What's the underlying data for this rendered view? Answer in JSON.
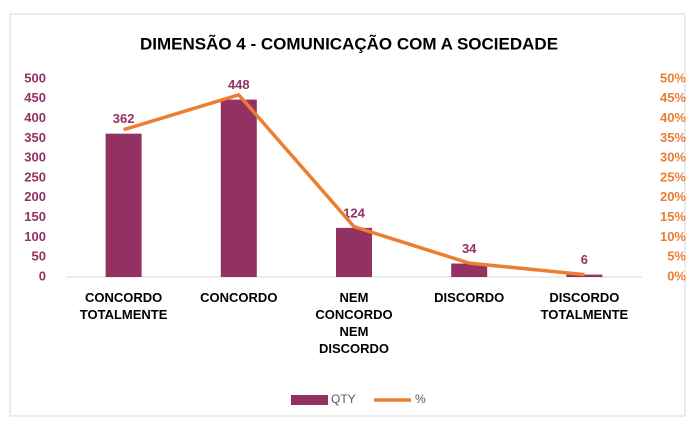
{
  "chart_data": {
    "type": "bar_line",
    "title": "DIMENSÃO 4 - COMUNICAÇÃO COM A SOCIEDADE",
    "categories": [
      "CONCORDO TOTALMENTE",
      "CONCORDO",
      "NEM CONCORDO NEM DISCORDO",
      "DISCORDO",
      "DISCORDO TOTALMENTE"
    ],
    "series": [
      {
        "name": "QTY",
        "color": "#943163",
        "type": "bar",
        "values": [
          362,
          448,
          124,
          34,
          6
        ],
        "data_labels": true
      },
      {
        "name": "%",
        "color": "#ED7D31",
        "type": "line",
        "axis": "y2",
        "values": [
          37.2,
          46.0,
          12.7,
          3.5,
          0.6
        ]
      }
    ],
    "ylim": [
      0,
      500
    ],
    "yticks": [
      0,
      50,
      100,
      150,
      200,
      250,
      300,
      350,
      400,
      450,
      500
    ],
    "y2lim": [
      0,
      50
    ],
    "y2ticks": [
      {
        "value": 0,
        "label": "0%"
      },
      {
        "value": 5,
        "label": "5%"
      },
      {
        "value": 10,
        "label": "10%"
      },
      {
        "value": 15,
        "label": "15%"
      },
      {
        "value": 20,
        "label": "20%"
      },
      {
        "value": 25,
        "label": "25%"
      },
      {
        "value": 30,
        "label": "30%"
      },
      {
        "value": 35,
        "label": "35%"
      },
      {
        "value": 40,
        "label": "40%"
      },
      {
        "value": 45,
        "label": "45%"
      },
      {
        "value": 50,
        "label": "50%"
      }
    ],
    "legend": "bottom"
  }
}
